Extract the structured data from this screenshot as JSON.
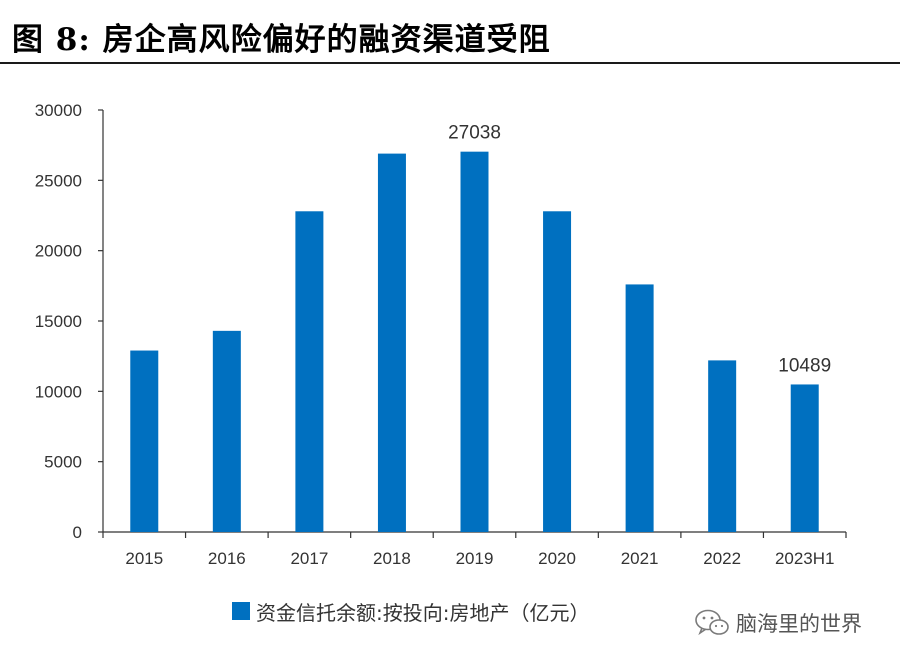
{
  "figure": {
    "title": "图  8:  房企高风险偏好的融资渠道受阻"
  },
  "chart_data": {
    "type": "bar",
    "title": "",
    "xlabel": "",
    "ylabel": "",
    "categories": [
      "2015",
      "2016",
      "2017",
      "2018",
      "2019",
      "2020",
      "2021",
      "2022",
      "2023H1"
    ],
    "series": [
      {
        "name": "资金信托余额:按投向:房地产（亿元）",
        "values": [
          12900,
          14300,
          22800,
          26900,
          27038,
          22800,
          17600,
          12200,
          10489
        ]
      }
    ],
    "data_labels": [
      {
        "category": "2019",
        "text": "27038"
      },
      {
        "category": "2023H1",
        "text": "10489"
      }
    ],
    "ylim": [
      0,
      30000
    ],
    "yticks": [
      "0",
      "5000",
      "10000",
      "15000",
      "20000",
      "25000",
      "30000"
    ],
    "grid": false,
    "legend": "bottom",
    "bar_color": "#0070C0"
  },
  "watermark": {
    "text": "脑海里的世界",
    "icon": "wechat-icon"
  }
}
